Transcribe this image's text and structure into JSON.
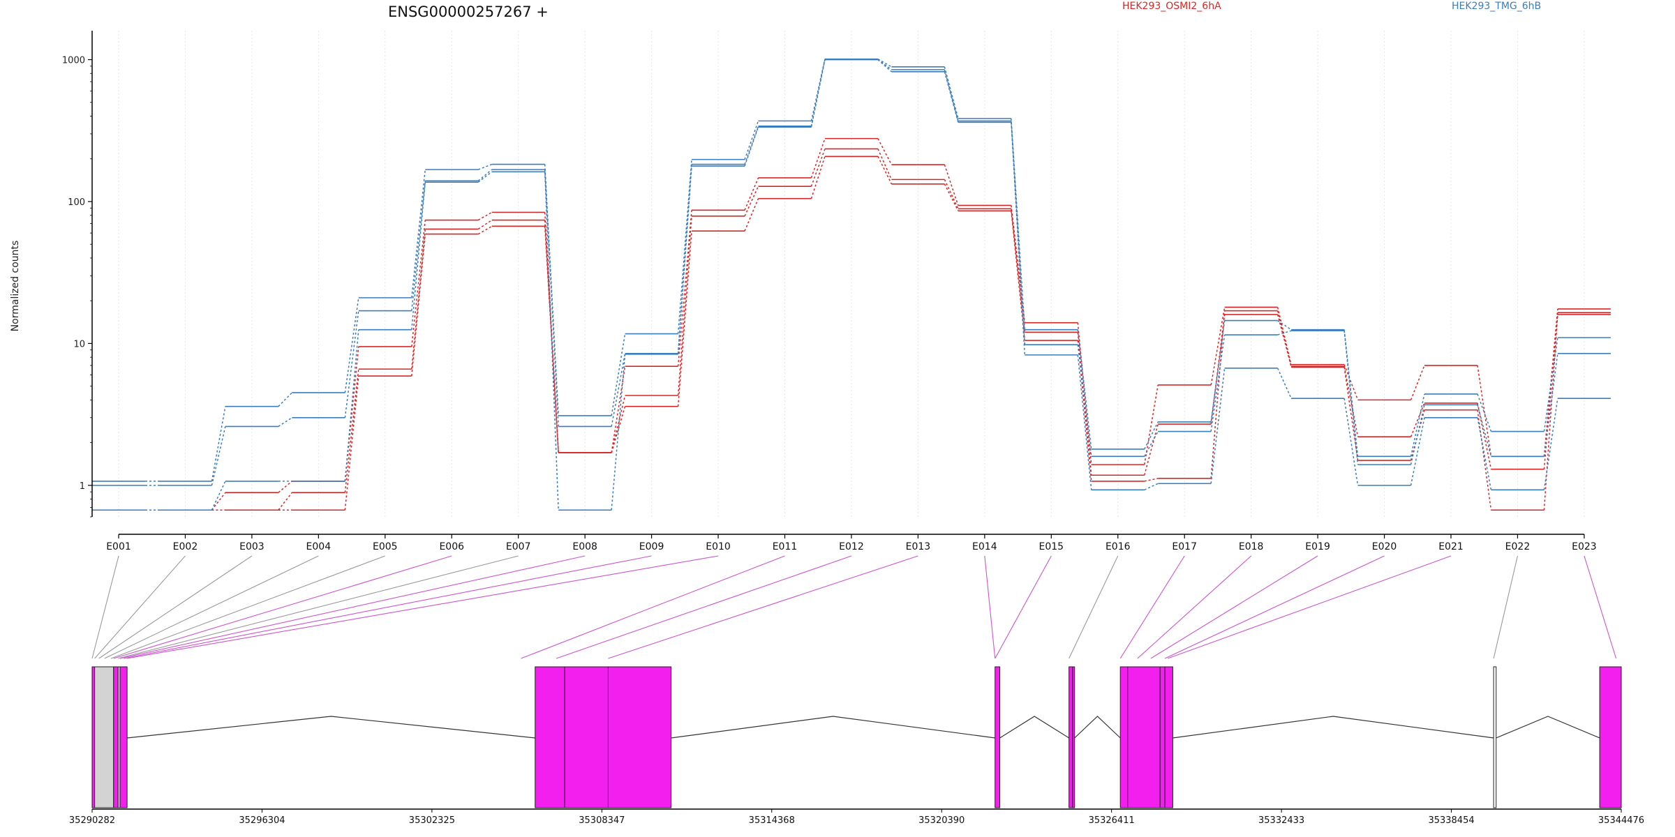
{
  "chart_data": {
    "type": "line",
    "title": "ENSG00000257267 +",
    "ylabel": "Normalized counts",
    "xlabel": "",
    "yscale": "log",
    "ylim": [
      0.6,
      1600
    ],
    "yticks": [
      1,
      10,
      100,
      1000
    ],
    "ytick_labels": [
      "1",
      "10",
      "100",
      "1000"
    ],
    "grid": "vertical lines at exons",
    "categories": [
      "E001",
      "E002",
      "E003",
      "E004",
      "E005",
      "E006",
      "E007",
      "E008",
      "E009",
      "E010",
      "E011",
      "E012",
      "E013",
      "E014",
      "E015",
      "E016",
      "E017",
      "E018",
      "E019",
      "E020",
      "E021",
      "E022",
      "E023"
    ],
    "legend": [
      {
        "label": "HEK293_OSMI2_6hA",
        "color": "#d62728"
      },
      {
        "label": "HEK293_TMG_6hB",
        "color": "#3a7dbd"
      }
    ],
    "series": [
      {
        "group": "HEK293_OSMI2_6hA",
        "color": "#d62728",
        "values": [
          0.67,
          0.67,
          0.67,
          0.67,
          5.9,
          59,
          67,
          1.7,
          3.6,
          62,
          105,
          208,
          133,
          86,
          10.5,
          1.07,
          1.12,
          17,
          6.8,
          1.5,
          3.4,
          0.67,
          16
        ]
      },
      {
        "group": "HEK293_OSMI2_6hA",
        "color": "#d62728",
        "values": [
          0.67,
          0.67,
          0.67,
          0.89,
          6.6,
          64,
          74,
          1.7,
          4.3,
          79,
          128,
          235,
          143,
          89,
          12,
          1.18,
          2.7,
          16,
          6.9,
          2.2,
          3.8,
          1.3,
          16.5
        ]
      },
      {
        "group": "HEK293_OSMI2_6hA",
        "color": "#d62728",
        "values": [
          0.67,
          0.67,
          0.89,
          1.07,
          9.5,
          74,
          84,
          1.7,
          6.9,
          87,
          147,
          278,
          182,
          94,
          14,
          1.4,
          5.1,
          18,
          7.1,
          4.0,
          7.0,
          1.6,
          17.5
        ]
      },
      {
        "group": "HEK293_TMG_6hB",
        "color": "#3a7dbd",
        "values": [
          0.67,
          0.67,
          1.07,
          1.07,
          12.5,
          137,
          162,
          0.67,
          8.4,
          178,
          335,
          1000,
          822,
          362,
          8.3,
          0.93,
          1.03,
          6.7,
          4.1,
          1.0,
          3.0,
          0.93,
          4.1
        ]
      },
      {
        "group": "HEK293_TMG_6hB",
        "color": "#3a7dbd",
        "values": [
          1.0,
          1.0,
          2.6,
          3.0,
          17,
          140,
          168,
          2.6,
          8.5,
          183,
          340,
          1005,
          850,
          370,
          9.8,
          1.6,
          2.4,
          11.5,
          12.3,
          1.4,
          3.7,
          1.6,
          8.5
        ]
      },
      {
        "group": "HEK293_TMG_6hB",
        "color": "#3a7dbd",
        "values": [
          1.07,
          1.07,
          3.6,
          4.5,
          21,
          168,
          183,
          3.1,
          11.7,
          198,
          370,
          1010,
          890,
          385,
          12.5,
          1.8,
          2.8,
          14.5,
          12.5,
          1.6,
          4.4,
          2.4,
          11
        ]
      }
    ],
    "gene_model": {
      "coord_ticks": [
        "35290282",
        "35296304",
        "35302325",
        "35308347",
        "35314368",
        "35320390",
        "35326411",
        "35332433",
        "35338454",
        "35344476"
      ],
      "coord_range": [
        35290282,
        35344476
      ],
      "exons": [
        {
          "start": 35290282,
          "end": 35290372,
          "color": "#f21fef"
        },
        {
          "start": 35290372,
          "end": 35291042,
          "color": "#d3d3d3"
        },
        {
          "start": 35291042,
          "end": 35291202,
          "color": "#f21fef"
        },
        {
          "start": 35291202,
          "end": 35291272,
          "color": "#d3d3d3"
        },
        {
          "start": 35291272,
          "end": 35291522,
          "color": "#f21fef"
        },
        {
          "start": 35305982,
          "end": 35307032,
          "color": "#f21fef"
        },
        {
          "start": 35307032,
          "end": 35308572,
          "color": "#f21fef"
        },
        {
          "start": 35308572,
          "end": 35310802,
          "color": "#f21fef"
        },
        {
          "start": 35322282,
          "end": 35322452,
          "color": "#f21fef"
        },
        {
          "start": 35324902,
          "end": 35325032,
          "color": "#f21fef"
        },
        {
          "start": 35325032,
          "end": 35325102,
          "color": "#f21fef"
        },
        {
          "start": 35326722,
          "end": 35326982,
          "color": "#f21fef"
        },
        {
          "start": 35326982,
          "end": 35328132,
          "color": "#f21fef"
        },
        {
          "start": 35328132,
          "end": 35328302,
          "color": "#f21fef"
        },
        {
          "start": 35328302,
          "end": 35328582,
          "color": "#f21fef"
        },
        {
          "start": 35339952,
          "end": 35340042,
          "color": "#ffffff"
        },
        {
          "start": 35343712,
          "end": 35344476,
          "color": "#f21fef"
        }
      ],
      "introns": [
        {
          "start": 35291522,
          "end": 35305982
        },
        {
          "start": 35310802,
          "end": 35322282
        },
        {
          "start": 35322452,
          "end": 35324902
        },
        {
          "start": 35325102,
          "end": 35326722
        },
        {
          "start": 35328582,
          "end": 35339952
        },
        {
          "start": 35340042,
          "end": 35343712
        }
      ],
      "connectors": [
        {
          "exon": "E001",
          "pos": 35290282,
          "color": "#999999"
        },
        {
          "exon": "E002",
          "pos": 35290372,
          "color": "#999999"
        },
        {
          "exon": "E003",
          "pos": 35290522,
          "color": "#999999"
        },
        {
          "exon": "E004",
          "pos": 35290722,
          "color": "#999999"
        },
        {
          "exon": "E005",
          "pos": 35290952,
          "color": "#999999"
        },
        {
          "exon": "E006",
          "pos": 35291042,
          "color": "#cc55cc"
        },
        {
          "exon": "E007",
          "pos": 35291202,
          "color": "#999999"
        },
        {
          "exon": "E008",
          "pos": 35291272,
          "color": "#cc55cc"
        },
        {
          "exon": "E009",
          "pos": 35291402,
          "color": "#cc55cc"
        },
        {
          "exon": "E010",
          "pos": 35291522,
          "color": "#cc55cc"
        },
        {
          "exon": "E011",
          "pos": 35305482,
          "color": "#cc55cc"
        },
        {
          "exon": "E012",
          "pos": 35306732,
          "color": "#cc55cc"
        },
        {
          "exon": "E013",
          "pos": 35308572,
          "color": "#cc55cc"
        },
        {
          "exon": "E014",
          "pos": 35322282,
          "color": "#cc55cc"
        },
        {
          "exon": "E015",
          "pos": 35322282,
          "color": "#cc55cc"
        },
        {
          "exon": "E016",
          "pos": 35324902,
          "color": "#999999"
        },
        {
          "exon": "E017",
          "pos": 35326722,
          "color": "#cc55cc"
        },
        {
          "exon": "E018",
          "pos": 35327332,
          "color": "#cc55cc"
        },
        {
          "exon": "E019",
          "pos": 35327802,
          "color": "#cc55cc"
        },
        {
          "exon": "E020",
          "pos": 35328302,
          "color": "#cc55cc"
        },
        {
          "exon": "E021",
          "pos": 35328402,
          "color": "#cc55cc"
        },
        {
          "exon": "E022",
          "pos": 35339952,
          "color": "#999999"
        },
        {
          "exon": "E023",
          "pos": 35344292,
          "color": "#cc55cc"
        }
      ]
    }
  }
}
